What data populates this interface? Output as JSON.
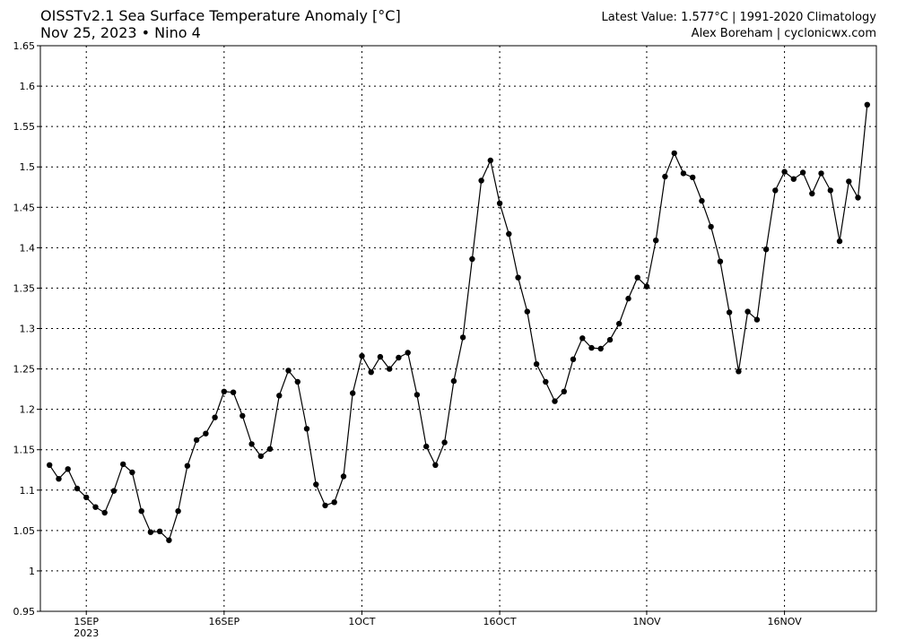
{
  "header": {
    "title_line1": "OISSTv2.1 Sea Surface Temperature Anomaly [°C]",
    "title_line2": "Nov 25, 2023 • Nino 4",
    "info_line1": "Latest Value: 1.577°C | 1991-2020 Climatology",
    "info_line2": "Alex Boreham | cyclonicwx.com"
  },
  "chart_data": {
    "type": "line",
    "title": "OISSTv2.1 Sea Surface Temperature Anomaly [°C]",
    "subtitle": "Nov 25, 2023 • Nino 4",
    "ylim": [
      0.95,
      1.65
    ],
    "yticks": [
      0.95,
      1.0,
      1.05,
      1.1,
      1.15,
      1.2,
      1.25,
      1.3,
      1.35,
      1.4,
      1.45,
      1.5,
      1.55,
      1.6,
      1.65
    ],
    "ytick_labels": [
      "0.95",
      "1",
      "1.05",
      "1.1",
      "1.15",
      "1.2",
      "1.25",
      "1.3",
      "1.35",
      "1.4",
      "1.45",
      "1.5",
      "1.55",
      "1.6",
      "1.65"
    ],
    "xlim": [
      "2023-08-27",
      "2023-11-26"
    ],
    "xticks": [
      {
        "date": "2023-09-01",
        "label": "1SEP",
        "sublabel": "2023"
      },
      {
        "date": "2023-09-16",
        "label": "16SEP",
        "sublabel": ""
      },
      {
        "date": "2023-10-01",
        "label": "1OCT",
        "sublabel": ""
      },
      {
        "date": "2023-10-16",
        "label": "16OCT",
        "sublabel": ""
      },
      {
        "date": "2023-11-01",
        "label": "1NOV",
        "sublabel": ""
      },
      {
        "date": "2023-11-16",
        "label": "16NOV",
        "sublabel": ""
      }
    ],
    "grid": true,
    "series": [
      {
        "color": "#000000",
        "x_start": "2023-08-28",
        "x_step_days": 1,
        "values": [
          1.131,
          1.114,
          1.126,
          1.102,
          1.091,
          1.079,
          1.072,
          1.099,
          1.132,
          1.122,
          1.074,
          1.048,
          1.049,
          1.038,
          1.074,
          1.13,
          1.162,
          1.17,
          1.19,
          1.222,
          1.221,
          1.192,
          1.157,
          1.142,
          1.151,
          1.217,
          1.248,
          1.234,
          1.176,
          1.107,
          1.081,
          1.085,
          1.117,
          1.22,
          1.266,
          1.246,
          1.265,
          1.25,
          1.264,
          1.27,
          1.218,
          1.154,
          1.131,
          1.159,
          1.235,
          1.289,
          1.386,
          1.483,
          1.508,
          1.455,
          1.417,
          1.363,
          1.321,
          1.256,
          1.234,
          1.21,
          1.222,
          1.262,
          1.288,
          1.276,
          1.275,
          1.286,
          1.306,
          1.337,
          1.363,
          1.352,
          1.409,
          1.488,
          1.517,
          1.492,
          1.487,
          1.458,
          1.426,
          1.383,
          1.32,
          1.247,
          1.321,
          1.311,
          1.398,
          1.471,
          1.494,
          1.485,
          1.493,
          1.467,
          1.492,
          1.471,
          1.408,
          1.482,
          1.462,
          1.577
        ]
      }
    ]
  }
}
